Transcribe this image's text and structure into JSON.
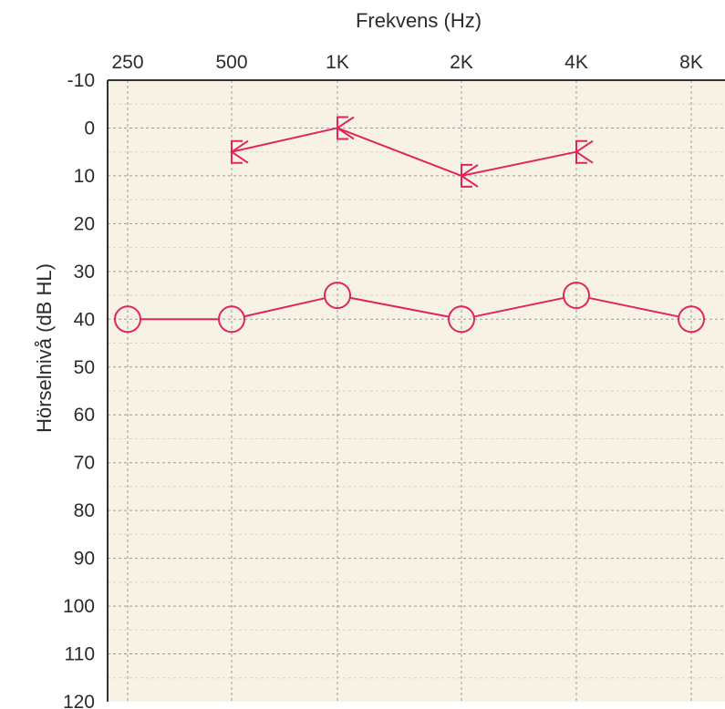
{
  "chart_data": {
    "type": "line",
    "xlabel": "Frekvens (Hz)",
    "ylabel": "Hörselnivå (dB HL)",
    "x_axis_position": "top",
    "y_inverted": true,
    "categories": [
      "250",
      "500",
      "1K",
      "2K",
      "4K",
      "8K"
    ],
    "ylim": [
      -10,
      120
    ],
    "yticks": [
      -10,
      0,
      10,
      20,
      30,
      40,
      50,
      60,
      70,
      80,
      90,
      100,
      110,
      120
    ],
    "grid": true,
    "colors": {
      "series": "#e0245e",
      "plot_background": "#f7f2e4"
    },
    "series": [
      {
        "marker": "bracket",
        "icon": "bone-conduction-bracket-icon",
        "x": [
          "500",
          "1K",
          "2K",
          "4K"
        ],
        "values": [
          5,
          0,
          10,
          5
        ]
      },
      {
        "marker": "circle",
        "icon": "air-conduction-circle-icon",
        "x": [
          "250",
          "500",
          "1K",
          "2K",
          "4K",
          "8K"
        ],
        "values": [
          40,
          40,
          35,
          40,
          35,
          40
        ]
      }
    ]
  }
}
